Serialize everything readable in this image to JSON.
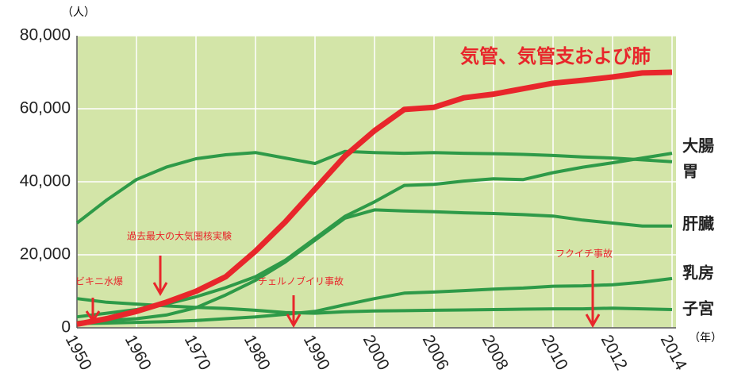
{
  "chart_data": {
    "type": "line",
    "y_unit": "（人）",
    "x_unit": "（年）",
    "categories": [
      "1950",
      null,
      "1960",
      null,
      "1970",
      null,
      "1980",
      null,
      "1990",
      null,
      "2000",
      null,
      "2006",
      null,
      "2008",
      null,
      "2010",
      null,
      "2012",
      null,
      "2014"
    ],
    "ylim": [
      0,
      80000
    ],
    "yticks": [
      0,
      {
        "value": 20000,
        "label": "20,000"
      },
      {
        "value": 40000,
        "label": "40,000"
      },
      {
        "value": 60000,
        "label": "60,000"
      },
      {
        "value": 80000,
        "label": "80,000"
      }
    ],
    "grid": true,
    "series": [
      {
        "name": "気管、気管支および肺",
        "color": "#e8262b",
        "values": [
          1000,
          2500,
          4500,
          7000,
          10000,
          14000,
          21000,
          29000,
          38000,
          47000,
          54000,
          59800,
          60400,
          63000,
          64000,
          65500,
          67000,
          67800,
          68700,
          69800,
          70000
        ]
      },
      {
        "name": "大腸",
        "color": "#2e9a48",
        "values": [
          3000,
          4000,
          5000,
          6500,
          8500,
          11000,
          14000,
          18500,
          24500,
          30500,
          34500,
          39000,
          39300,
          40200,
          40800,
          40600,
          42500,
          44000,
          45200,
          46500,
          47800
        ]
      },
      {
        "name": "胃",
        "color": "#2e9a48",
        "values": [
          28700,
          35000,
          40600,
          44000,
          46300,
          47400,
          48000,
          46500,
          45000,
          48300,
          48000,
          47800,
          48000,
          47800,
          47700,
          47500,
          47200,
          46800,
          46500,
          46000,
          45500
        ]
      },
      {
        "name": "肝臓",
        "color": "#2e9a48",
        "values": [
          1500,
          2000,
          2500,
          3500,
          5500,
          9000,
          13000,
          18000,
          24000,
          30000,
          32300,
          32000,
          31800,
          31500,
          31300,
          31000,
          30600,
          29500,
          28700,
          27900,
          27900
        ]
      },
      {
        "name": "乳房",
        "color": "#2e9a48",
        "values": [
          1200,
          1300,
          1500,
          1700,
          2000,
          2500,
          3000,
          3700,
          4500,
          6300,
          8000,
          9500,
          9800,
          10200,
          10600,
          10900,
          11400,
          11500,
          11800,
          12500,
          13500
        ]
      },
      {
        "name": "子宮",
        "color": "#2e9a48",
        "values": [
          8000,
          7000,
          6500,
          6000,
          5600,
          5300,
          4800,
          4200,
          4000,
          4400,
          4600,
          4700,
          4800,
          4900,
          5000,
          5100,
          5200,
          5200,
          5400,
          5200,
          5000
        ]
      }
    ],
    "annotations": [
      "ビキニ水爆",
      "過去最大の大気圏核実験",
      "チェルノブイリ事故",
      "フクイチ事故"
    ]
  }
}
